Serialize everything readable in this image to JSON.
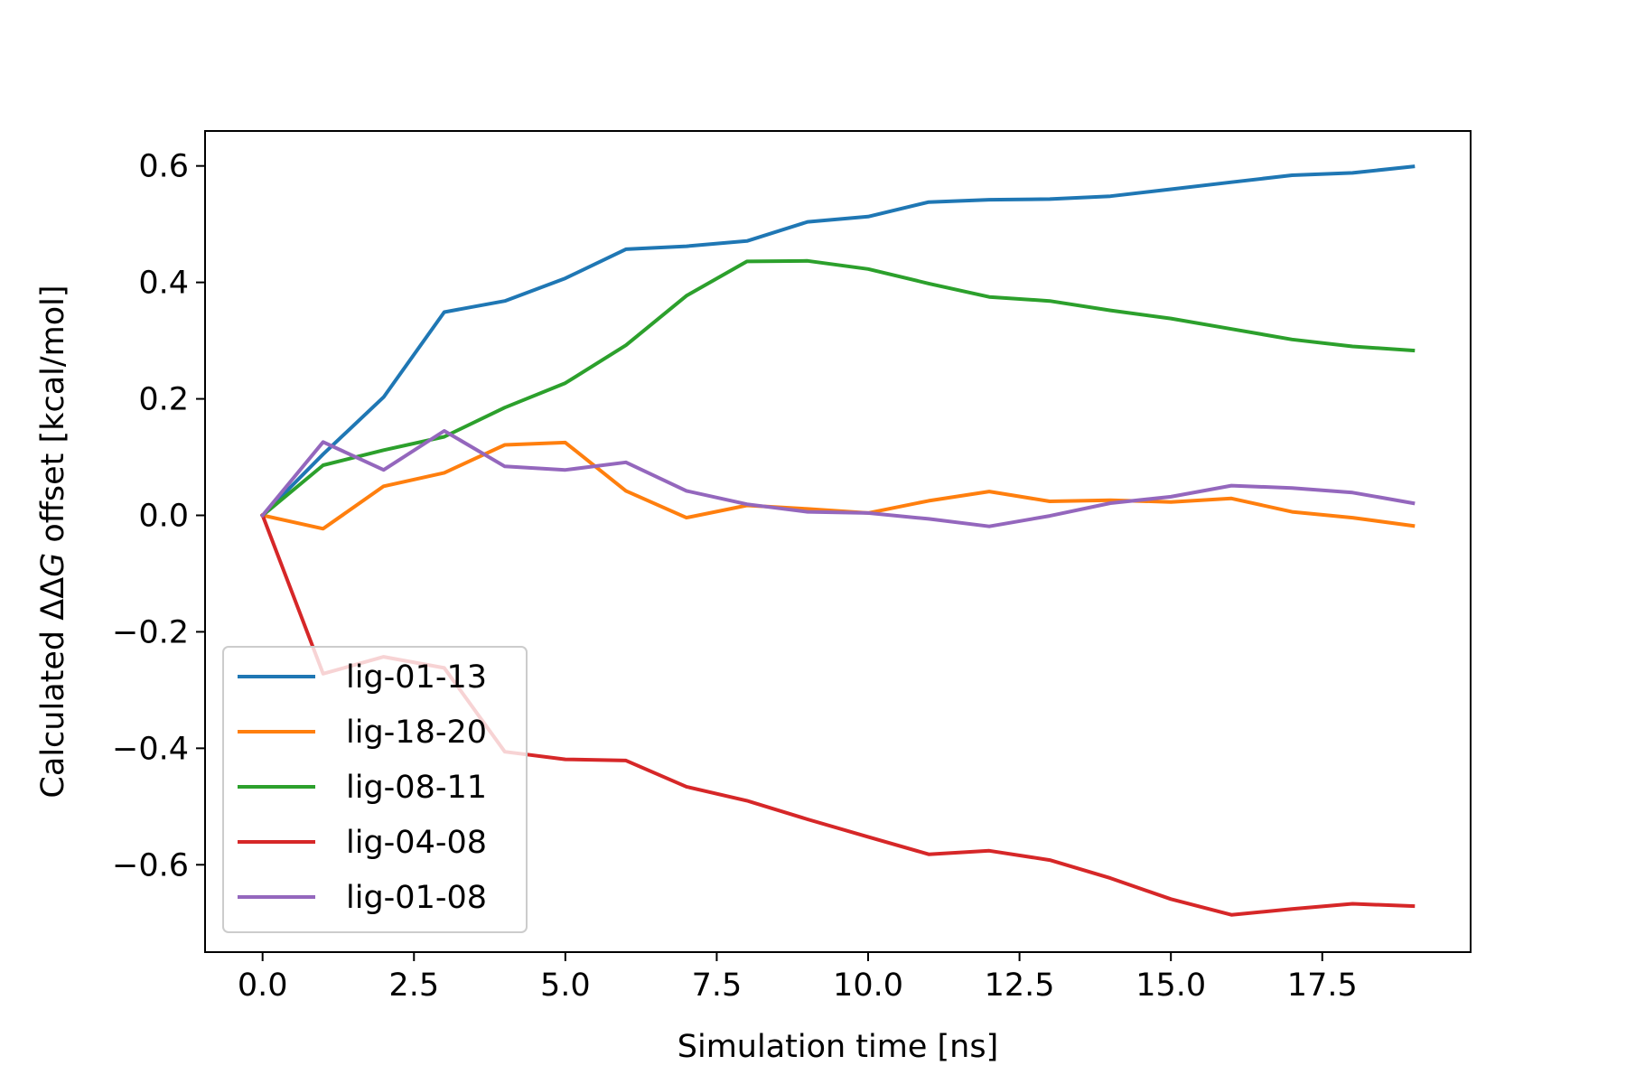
{
  "chart_data": {
    "type": "line",
    "xlabel": "Simulation time [ns]",
    "ylabel_prefix": "Calculated ",
    "ylabel_symbol": "ΔΔ",
    "ylabel_italic": "G",
    "ylabel_suffix": " offset [kcal/mol]",
    "xlim": [
      -0.95,
      19.95
    ],
    "ylim": [
      -0.75,
      0.66
    ],
    "x_ticks": [
      0.0,
      2.5,
      5.0,
      7.5,
      10.0,
      12.5,
      15.0,
      17.5
    ],
    "x_tick_labels": [
      "0.0",
      "2.5",
      "5.0",
      "7.5",
      "10.0",
      "12.5",
      "15.0",
      "17.5"
    ],
    "y_ticks": [
      0.6,
      0.4,
      0.2,
      0.0,
      -0.2,
      -0.4,
      -0.6
    ],
    "y_tick_labels": [
      "0.6",
      "0.4",
      "0.2",
      "0.0",
      "−0.2",
      "−0.4",
      "−0.6"
    ],
    "grid": false,
    "legend_position": "lower-left",
    "x": [
      0,
      1,
      2,
      3,
      4,
      5,
      6,
      7,
      8,
      9,
      10,
      11,
      12,
      13,
      14,
      15,
      16,
      17,
      18,
      19
    ],
    "series": [
      {
        "name": "lig-01-13",
        "color": "#1f77b4",
        "values": [
          0.0,
          0.105,
          0.203,
          0.349,
          0.368,
          0.407,
          0.457,
          0.462,
          0.471,
          0.504,
          0.513,
          0.538,
          0.542,
          0.543,
          0.548,
          0.56,
          0.572,
          0.584,
          0.588,
          0.599
        ]
      },
      {
        "name": "lig-18-20",
        "color": "#ff7f0e",
        "values": [
          0.0,
          -0.023,
          0.05,
          0.073,
          0.121,
          0.125,
          0.042,
          -0.004,
          0.017,
          0.011,
          0.004,
          0.025,
          0.041,
          0.024,
          0.026,
          0.023,
          0.029,
          0.006,
          -0.004,
          -0.018
        ]
      },
      {
        "name": "lig-08-11",
        "color": "#2ca02c",
        "values": [
          0.0,
          0.086,
          0.112,
          0.135,
          0.185,
          0.227,
          0.292,
          0.377,
          0.436,
          0.437,
          0.423,
          0.398,
          0.375,
          0.368,
          0.352,
          0.338,
          0.32,
          0.302,
          0.29,
          0.283
        ]
      },
      {
        "name": "lig-04-08",
        "color": "#d62728",
        "values": [
          0.0,
          -0.272,
          -0.243,
          -0.262,
          -0.406,
          -0.419,
          -0.421,
          -0.466,
          -0.49,
          -0.522,
          -0.552,
          -0.582,
          -0.576,
          -0.592,
          -0.623,
          -0.659,
          -0.686,
          -0.676,
          -0.667,
          -0.671
        ]
      },
      {
        "name": "lig-01-08",
        "color": "#9467bd",
        "values": [
          0.0,
          0.126,
          0.078,
          0.145,
          0.084,
          0.078,
          0.091,
          0.042,
          0.019,
          0.006,
          0.004,
          -0.006,
          -0.019,
          -0.001,
          0.021,
          0.032,
          0.051,
          0.047,
          0.039,
          0.021
        ]
      }
    ]
  }
}
